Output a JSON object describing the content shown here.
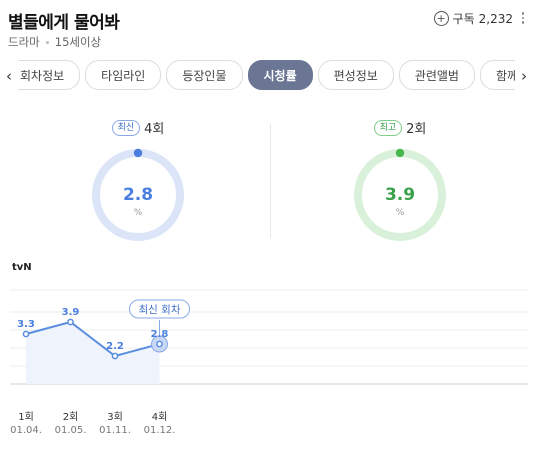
{
  "header": {
    "title": "별들에게 물어봐",
    "genre": "드라마",
    "rating": "15세이상",
    "subscribe_label": "구독",
    "subscribe_count": "2,232"
  },
  "tabs": [
    {
      "label": "회차정보"
    },
    {
      "label": "타임라인"
    },
    {
      "label": "등장인물"
    },
    {
      "label": "시청률",
      "active": true
    },
    {
      "label": "편성정보"
    },
    {
      "label": "관련앨범"
    },
    {
      "label": "함께 볼"
    }
  ],
  "gauges": {
    "latest": {
      "badge": "최신",
      "episode": "4회",
      "value": "2.8",
      "unit": "%",
      "color": "#4a7fe0",
      "track": "#dbe5f7",
      "level": 0.028
    },
    "peak": {
      "badge": "최고",
      "episode": "2회",
      "value": "3.9",
      "unit": "%",
      "color": "#48b84f",
      "track": "#d9f1db",
      "level": 0.039
    }
  },
  "channel": "tvN",
  "chart_data": {
    "type": "line",
    "categories": [
      "1회",
      "2회",
      "3회",
      "4회"
    ],
    "dates": [
      "01.04.",
      "01.05.",
      "01.11.",
      "01.12."
    ],
    "values": [
      3.3,
      3.9,
      2.2,
      2.8
    ],
    "value_labels": [
      "3.3",
      "3.9",
      "2.2",
      "2.8"
    ],
    "annotation": "최신 회차",
    "grid": true,
    "line_color": "#5b8de0",
    "fill_color": "#eef3fc"
  }
}
